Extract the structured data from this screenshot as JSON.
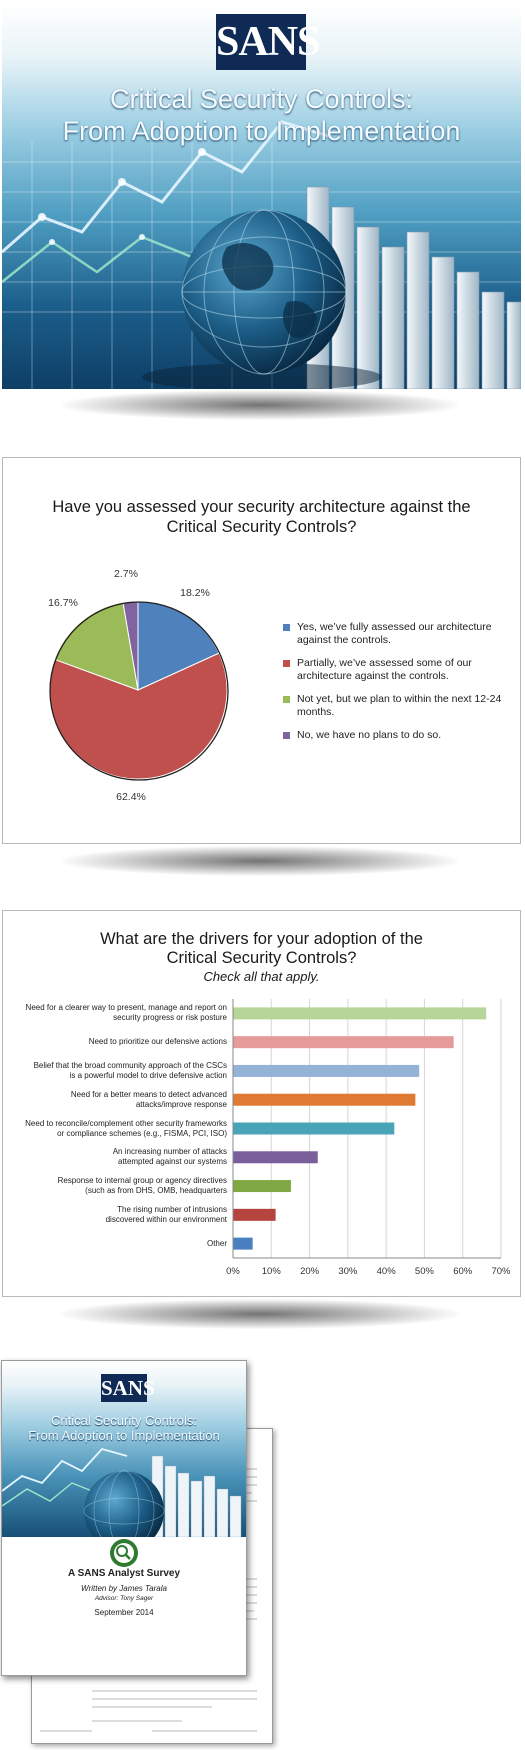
{
  "cover": {
    "logo": "SANS",
    "title_line1": "Critical Security Controls:",
    "title_line2": "From Adoption to Implementation"
  },
  "pie_slide": {
    "title_line1": "Have you assessed your security architecture against the",
    "title_line2": "Critical Security Controls?"
  },
  "bar_slide": {
    "title_line1": "What are the drivers for your adoption of the",
    "title_line2": "Critical Security Controls?",
    "subtitle": "Check all that apply."
  },
  "report": {
    "logo": "SANS",
    "title_line1": "Critical Security Controls:",
    "title_line2": "From Adoption to Implementation",
    "survey_label": "A SANS Analyst Survey",
    "author": "Written by James Tarala",
    "advisor": "Advisor: Tony Sager",
    "date": "September 2014"
  },
  "chart_data": [
    {
      "type": "pie",
      "title": "Have you assessed your security architecture against the Critical Security Controls?",
      "labels": [
        "Yes, we’ve fully assessed our architecture against the controls.",
        "Partially, we’ve assessed some of our architecture against the controls.",
        "Not yet, but we plan to within the next 12-24 months.",
        "No, we have no plans to do so."
      ],
      "values": [
        18.2,
        62.4,
        16.7,
        2.7
      ],
      "value_labels": [
        "18.2%",
        "62.4%",
        "16.7%",
        "2.7%"
      ],
      "colors": [
        "#4f81bd",
        "#c0504d",
        "#9bbb59",
        "#8064a2"
      ],
      "legend": "right"
    },
    {
      "type": "bar",
      "orientation": "horizontal",
      "title": "What are the drivers for your adoption of the Critical Security Controls?",
      "subtitle": "Check all that apply.",
      "categories": [
        [
          "Need for a clearer way to present, manage and report on",
          "security progress or risk posture"
        ],
        [
          "Need to prioritize our defensive actions"
        ],
        [
          "Belief that the broad community approach of the CSCs",
          "is a powerful model to drive defensive action"
        ],
        [
          "Need for a better means to detect advanced",
          "attacks/improve response"
        ],
        [
          "Need to reconcile/complement other security frameworks",
          "or compliance schemes (e.g., FISMA, PCI, ISO)"
        ],
        [
          "An increasing number of attacks",
          "attempted against our systems"
        ],
        [
          "Response to internal group or agency directives",
          "(such as from DHS, OMB, headquarters"
        ],
        [
          "The rising number of intrusions",
          "discovered within our environment"
        ],
        [
          "Other"
        ]
      ],
      "values": [
        66,
        57.5,
        48.5,
        47.5,
        42,
        22,
        15,
        11,
        5
      ],
      "colors": [
        "#b7d598",
        "#e59b9a",
        "#95b3d7",
        "#e07a32",
        "#4aa4b8",
        "#7a5f9a",
        "#7fa843",
        "#b5443f",
        "#4a7fc1"
      ],
      "xlim": [
        0,
        70
      ],
      "x_ticks": [
        "0%",
        "10%",
        "20%",
        "30%",
        "40%",
        "50%",
        "60%",
        "70%"
      ],
      "grid": true
    }
  ]
}
